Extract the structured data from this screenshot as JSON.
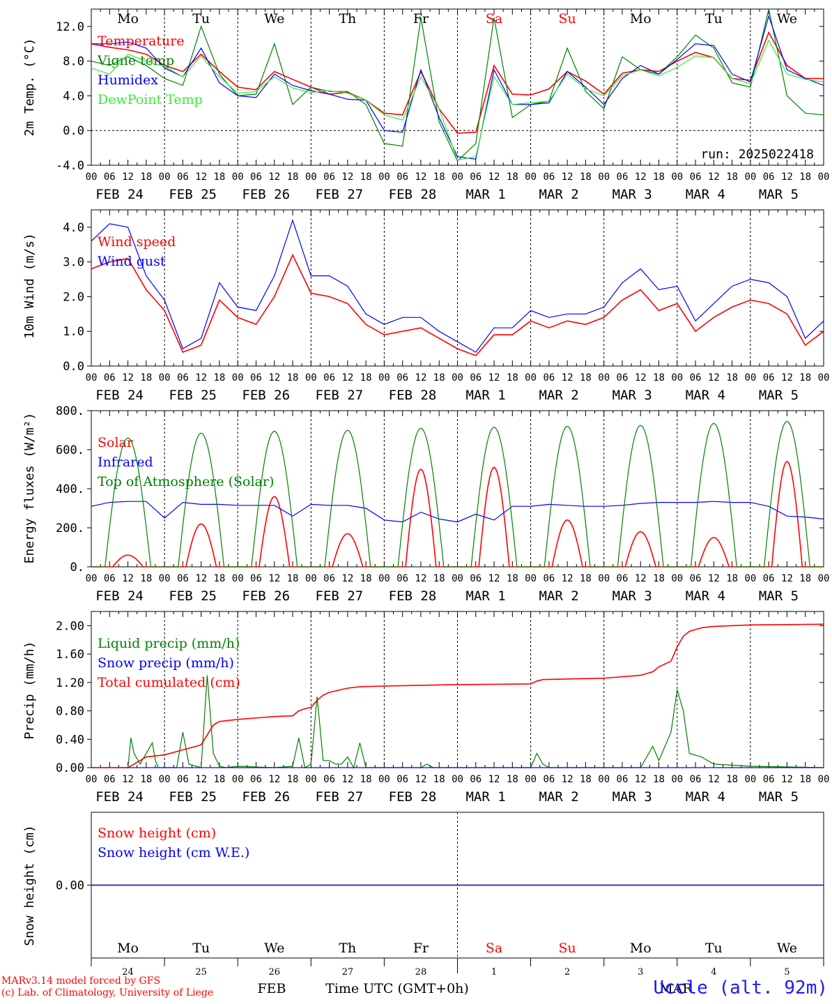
{
  "meteogram": {
    "days": [
      "Mo",
      "Tu",
      "We",
      "Th",
      "Fr",
      "Sa",
      "Su",
      "Mo",
      "Tu",
      "We"
    ],
    "weekend_flags": [
      false,
      false,
      false,
      false,
      false,
      true,
      true,
      false,
      false,
      false
    ],
    "date_labels": [
      "FEB 24",
      "FEB 25",
      "FEB 26",
      "FEB 27",
      "FEB 28",
      "MAR  1",
      "MAR  2",
      "MAR  3",
      "MAR  4",
      "MAR  5"
    ],
    "hour_labels": [
      "00",
      "06",
      "12",
      "18"
    ],
    "hour_final": "00",
    "run_label": "run: 2025022418",
    "bottom_day_numbers": [
      "24",
      "25",
      "26",
      "27",
      "28",
      "1",
      "2",
      "3",
      "4",
      "5"
    ],
    "bottom_month_feb": "FEB",
    "bottom_month_mar": "MAR",
    "time_axis_label": "Time UTC (GMT+0h)",
    "footer_line1": "MARv3.14 model forced by GFS",
    "footer_line2": "(c) Lab. of Climatology, University of Liege",
    "station": "Uccle (alt. 92m)"
  },
  "colors": {
    "red": "#ff0000",
    "green": "#008000",
    "blue": "#0000ff",
    "lightgreen": "#33ee33",
    "text": "#000000"
  },
  "chart_data": [
    {
      "type": "line",
      "ylabel": "2m Temp. (°C)",
      "ylim": [
        -4,
        14
      ],
      "yticks": [
        "-4.0",
        "0.0",
        "4.0",
        "8.0",
        "12.0"
      ],
      "x_unit": "hours since Feb 24 00 UTC",
      "series": [
        {
          "name": "Temperature",
          "color": "red",
          "x": [
            0,
            6,
            12,
            18,
            24,
            30,
            36,
            42,
            48,
            54,
            60,
            66,
            72,
            78,
            84,
            90,
            96,
            102,
            108,
            114,
            120,
            126,
            132,
            138,
            144,
            150,
            156,
            162,
            168,
            174,
            180,
            186,
            192,
            198,
            204,
            210,
            216,
            222,
            228,
            234,
            240
          ],
          "y": [
            10,
            9.6,
            9.3,
            8.8,
            7.5,
            6.8,
            8.8,
            6.8,
            5,
            4.7,
            6.8,
            5.9,
            5,
            4.2,
            4.4,
            3.5,
            2,
            1.8,
            6.8,
            2.5,
            -0.3,
            -0.2,
            7.5,
            4.2,
            4.1,
            4.8,
            6.8,
            5.7,
            4.2,
            6.6,
            7,
            6.8,
            8,
            9,
            8.4,
            6,
            5.8,
            11.3,
            7.5,
            6,
            6
          ]
        },
        {
          "name": "Vigne temp",
          "color": "green",
          "x": [
            0,
            6,
            12,
            18,
            24,
            30,
            36,
            42,
            48,
            54,
            60,
            66,
            72,
            78,
            84,
            90,
            96,
            102,
            108,
            114,
            120,
            126,
            132,
            138,
            144,
            150,
            156,
            162,
            168,
            174,
            180,
            186,
            192,
            198,
            204,
            210,
            216,
            222,
            228,
            234,
            240
          ],
          "y": [
            8,
            7.5,
            8.5,
            7.5,
            6,
            5.2,
            12,
            6.5,
            4,
            4.2,
            10,
            3,
            5,
            4.5,
            4.5,
            3,
            -1.5,
            -1.8,
            13,
            1,
            -3.5,
            -1.5,
            13,
            1.5,
            3,
            3.4,
            9.5,
            4.5,
            2.5,
            8.5,
            7,
            6.5,
            8.5,
            11,
            9.5,
            5.5,
            5,
            14,
            4,
            2,
            1.8
          ]
        },
        {
          "name": "Humidex",
          "color": "blue",
          "x": [
            0,
            6,
            12,
            18,
            24,
            30,
            36,
            42,
            48,
            54,
            60,
            66,
            72,
            78,
            84,
            90,
            96,
            102,
            108,
            114,
            120,
            126,
            132,
            138,
            144,
            150,
            156,
            162,
            168,
            174,
            180,
            186,
            192,
            198,
            204,
            210,
            216,
            222,
            228,
            234,
            240
          ],
          "y": [
            10,
            10,
            10.2,
            9.5,
            7.2,
            6.2,
            9.5,
            5.5,
            4,
            3.8,
            6.5,
            5.2,
            4.6,
            4.2,
            3.6,
            3.5,
            0,
            -0.2,
            7,
            1.5,
            -3,
            -3.3,
            7,
            3,
            3,
            3.2,
            6.8,
            5,
            3,
            6,
            7.5,
            6.5,
            8.2,
            10,
            9.8,
            6.5,
            5.6,
            13.2,
            7,
            6,
            5.2
          ]
        },
        {
          "name": "DewPoint Temp",
          "color": "lightgreen",
          "x": [
            0,
            6,
            12,
            18,
            24,
            30,
            36,
            42,
            48,
            54,
            60,
            66,
            72,
            78,
            84,
            90,
            96,
            102,
            108,
            114,
            120,
            126,
            132,
            138,
            144,
            150,
            156,
            162,
            168,
            174,
            180,
            186,
            192,
            198,
            204,
            210,
            216,
            222,
            228,
            234,
            240
          ],
          "y": [
            7.2,
            6.5,
            8.8,
            8,
            7.4,
            6.2,
            8.6,
            6.2,
            4.3,
            4.5,
            6.2,
            4.9,
            4.4,
            4.6,
            4.3,
            3.5,
            1.8,
            1.2,
            6.2,
            2.5,
            -3.4,
            -3,
            6.2,
            3,
            3.2,
            3.4,
            6.5,
            4.8,
            4,
            6.3,
            7,
            6.3,
            7.3,
            8.6,
            8.4,
            6,
            5.4,
            10.4,
            6.5,
            5.9,
            5.6
          ]
        }
      ]
    },
    {
      "type": "line",
      "ylabel": "10m Wind (m/s)",
      "ylim": [
        0,
        4.5
      ],
      "yticks": [
        "0.0",
        "1.0",
        "2.0",
        "3.0",
        "4.0"
      ],
      "series": [
        {
          "name": "Wind speed",
          "color": "red",
          "x": [
            0,
            6,
            12,
            18,
            24,
            30,
            36,
            42,
            48,
            54,
            60,
            66,
            72,
            78,
            84,
            90,
            96,
            102,
            108,
            114,
            120,
            126,
            132,
            138,
            144,
            150,
            156,
            162,
            168,
            174,
            180,
            186,
            192,
            198,
            204,
            210,
            216,
            222,
            228,
            234,
            240
          ],
          "y": [
            2.8,
            3,
            3.1,
            2.2,
            1.6,
            0.4,
            0.6,
            1.9,
            1.4,
            1.2,
            2,
            3.2,
            2.1,
            2,
            1.8,
            1.2,
            0.9,
            1,
            1.1,
            0.8,
            0.5,
            0.3,
            0.9,
            0.9,
            1.3,
            1.1,
            1.3,
            1.2,
            1.4,
            1.9,
            2.2,
            1.6,
            1.8,
            1,
            1.4,
            1.7,
            1.9,
            1.8,
            1.5,
            0.6,
            1
          ]
        },
        {
          "name": "Wind gust",
          "color": "blue",
          "x": [
            0,
            6,
            12,
            18,
            24,
            30,
            36,
            42,
            48,
            54,
            60,
            66,
            72,
            78,
            84,
            90,
            96,
            102,
            108,
            114,
            120,
            126,
            132,
            138,
            144,
            150,
            156,
            162,
            168,
            174,
            180,
            186,
            192,
            198,
            204,
            210,
            216,
            222,
            228,
            234,
            240
          ],
          "y": [
            3.6,
            4.1,
            4,
            2.6,
            1.9,
            0.5,
            0.8,
            2.4,
            1.7,
            1.6,
            2.6,
            4.2,
            2.6,
            2.6,
            2.3,
            1.5,
            1.2,
            1.4,
            1.4,
            1,
            0.7,
            0.4,
            1.1,
            1.1,
            1.6,
            1.4,
            1.5,
            1.5,
            1.7,
            2.4,
            2.8,
            2.2,
            2.3,
            1.3,
            1.8,
            2.3,
            2.5,
            2.4,
            2,
            0.8,
            1.3
          ]
        }
      ]
    },
    {
      "type": "line",
      "ylabel": "Energy fluxes (W/m²)",
      "ylim": [
        0,
        800
      ],
      "yticks": [
        "0.",
        "200.",
        "400.",
        "600.",
        "800."
      ],
      "series": [
        {
          "name": "Solar",
          "color": "red",
          "peaks": [
            [
              12,
              60
            ],
            [
              36,
              220
            ],
            [
              60,
              360
            ],
            [
              84,
              170
            ],
            [
              108,
              500
            ],
            [
              132,
              510
            ],
            [
              156,
              240
            ],
            [
              180,
              180
            ],
            [
              204,
              150
            ],
            [
              228,
              540
            ]
          ]
        },
        {
          "name": "Infrared",
          "color": "blue",
          "x": [
            0,
            6,
            12,
            18,
            24,
            30,
            36,
            42,
            48,
            54,
            60,
            66,
            72,
            78,
            84,
            90,
            96,
            102,
            108,
            114,
            120,
            126,
            132,
            138,
            144,
            150,
            156,
            162,
            168,
            174,
            180,
            186,
            192,
            198,
            204,
            210,
            216,
            222,
            228,
            234,
            240
          ],
          "y": [
            310,
            330,
            335,
            335,
            250,
            330,
            320,
            320,
            315,
            315,
            315,
            260,
            320,
            315,
            315,
            300,
            240,
            230,
            280,
            245,
            230,
            270,
            240,
            310,
            310,
            320,
            315,
            310,
            310,
            315,
            325,
            330,
            330,
            330,
            335,
            330,
            330,
            310,
            260,
            255,
            245
          ]
        },
        {
          "name": "Top of Atmosphere (Solar)",
          "color": "green",
          "peaks": [
            [
              12,
              660
            ],
            [
              36,
              685
            ],
            [
              60,
              695
            ],
            [
              84,
              700
            ],
            [
              108,
              710
            ],
            [
              132,
              715
            ],
            [
              156,
              720
            ],
            [
              180,
              725
            ],
            [
              204,
              735
            ],
            [
              228,
              745
            ]
          ]
        }
      ]
    },
    {
      "type": "line",
      "ylabel": "Precip (mm/h)",
      "ylim": [
        0,
        2.2
      ],
      "yticks": [
        "0.00",
        "0.40",
        "0.80",
        "1.20",
        "1.60",
        "2.00"
      ],
      "series": [
        {
          "name": "Liquid precip (mm/h)",
          "color": "green",
          "x": [
            0,
            12,
            13,
            14,
            16,
            18,
            20,
            21,
            22,
            24,
            28,
            30,
            32,
            36,
            38,
            40,
            42,
            44,
            48,
            60,
            66,
            68,
            70,
            72,
            74,
            76,
            78,
            80,
            82,
            84,
            86,
            88,
            90,
            96,
            108,
            110,
            112,
            120,
            144,
            146,
            148,
            150,
            168,
            180,
            184,
            186,
            190,
            192,
            194,
            196,
            200,
            204,
            216,
            240
          ],
          "y": [
            0,
            0,
            0.42,
            0.2,
            0.05,
            0.2,
            0.35,
            0.1,
            0,
            0,
            0,
            0.5,
            0.05,
            0,
            1.3,
            0.2,
            0.02,
            0,
            0.02,
            0,
            0.02,
            0.42,
            0,
            0.05,
            1.0,
            0.1,
            0.1,
            0.05,
            0.05,
            0.15,
            0,
            0.35,
            0,
            0,
            0,
            0.05,
            0,
            0,
            0,
            0.2,
            0.05,
            0,
            0,
            0,
            0.3,
            0.1,
            0.5,
            1.1,
            0.8,
            0.2,
            0.15,
            0.05,
            0.02,
            0
          ]
        },
        {
          "name": "Snow precip (mm/h)",
          "color": "blue",
          "x": [
            0,
            240
          ],
          "y": [
            0,
            0
          ]
        },
        {
          "name": "Total cumulated (cm)",
          "color": "red",
          "x": [
            0,
            12,
            14,
            16,
            18,
            24,
            30,
            36,
            40,
            42,
            44,
            48,
            60,
            66,
            68,
            70,
            72,
            74,
            76,
            78,
            80,
            82,
            84,
            88,
            96,
            108,
            120,
            144,
            146,
            148,
            168,
            180,
            184,
            186,
            190,
            192,
            194,
            196,
            200,
            204,
            216,
            240
          ],
          "y": [
            0,
            0,
            0.05,
            0.1,
            0.15,
            0.18,
            0.25,
            0.32,
            0.6,
            0.65,
            0.66,
            0.68,
            0.72,
            0.73,
            0.8,
            0.83,
            0.85,
            0.95,
            1.02,
            1.06,
            1.08,
            1.1,
            1.12,
            1.14,
            1.15,
            1.16,
            1.17,
            1.18,
            1.22,
            1.24,
            1.26,
            1.3,
            1.35,
            1.42,
            1.5,
            1.7,
            1.85,
            1.92,
            1.97,
            1.99,
            2.01,
            2.02
          ]
        }
      ]
    },
    {
      "type": "line",
      "ylabel": "Snow height (cm)",
      "yticks": [
        "0.00"
      ],
      "series": [
        {
          "name": "Snow height (cm)",
          "color": "red",
          "x": [
            0,
            240
          ],
          "y": [
            0,
            0
          ]
        },
        {
          "name": "Snow height (cm W.E.)",
          "color": "blue",
          "x": [
            0,
            240
          ],
          "y": [
            0,
            0
          ]
        }
      ]
    }
  ]
}
